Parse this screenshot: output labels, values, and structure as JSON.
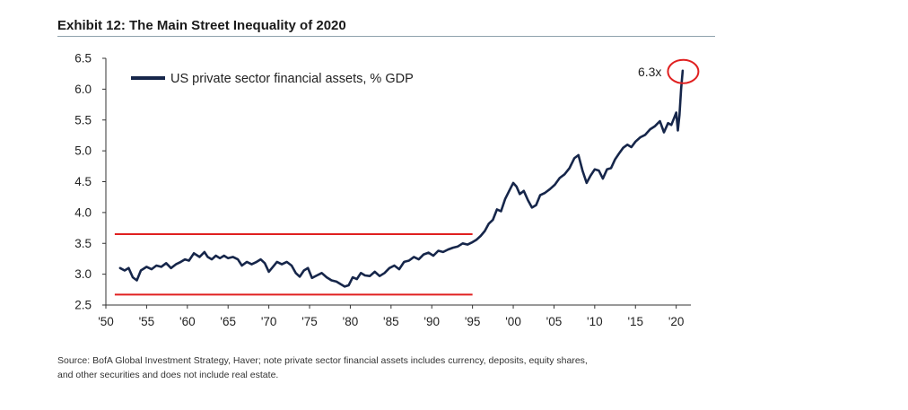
{
  "exhibit_title": "Exhibit 12: The Main Street Inequality of 2020",
  "source_note": {
    "line1": "Source: BofA Global Investment Strategy, Haver; note private sector financial assets includes currency,  deposits, equity shares,",
    "line2": "and other securities and does not include real estate."
  },
  "colors": {
    "line": "#16264a",
    "band": "#e02020",
    "circle": "#e02020",
    "axis": "#333333"
  },
  "chart_data": {
    "type": "line",
    "title": "Exhibit 12: The Main Street Inequality of 2020",
    "xlabel": "",
    "ylabel": "",
    "xlim": [
      1950,
      2021.8
    ],
    "ylim": [
      2.5,
      6.5
    ],
    "x_tick_values": [
      1950,
      1955,
      1960,
      1965,
      1970,
      1975,
      1980,
      1985,
      1990,
      1995,
      2000,
      2005,
      2010,
      2015,
      2020
    ],
    "x_tick_labels": [
      "'50",
      "'55",
      "'60",
      "'65",
      "'70",
      "'75",
      "'80",
      "'85",
      "'90",
      "'95",
      "'00",
      "'05",
      "'10",
      "'15",
      "'20"
    ],
    "y_tick_values": [
      2.5,
      3.0,
      3.5,
      4.0,
      4.5,
      5.0,
      5.5,
      6.0,
      6.5
    ],
    "y_tick_labels": [
      "2.5",
      "3.0",
      "3.5",
      "4.0",
      "4.5",
      "5.0",
      "5.5",
      "6.0",
      "6.5"
    ],
    "grid": false,
    "legend_position": "top-left",
    "series": [
      {
        "name": "US private sector financial assets, % GDP",
        "x": [
          1951.75,
          1952.3,
          1952.8,
          1953.3,
          1953.8,
          1954.3,
          1955.0,
          1955.6,
          1956.2,
          1956.8,
          1957.4,
          1958.0,
          1958.6,
          1959.2,
          1959.7,
          1960.2,
          1960.8,
          1961.5,
          1962.1,
          1962.5,
          1963.0,
          1963.5,
          1964.0,
          1964.5,
          1965.0,
          1965.6,
          1966.2,
          1966.7,
          1967.3,
          1967.9,
          1968.5,
          1969.0,
          1969.5,
          1970.0,
          1970.5,
          1971.0,
          1971.6,
          1972.2,
          1972.8,
          1973.3,
          1973.8,
          1974.3,
          1974.8,
          1975.3,
          1975.9,
          1976.5,
          1977.1,
          1977.7,
          1978.3,
          1978.8,
          1979.3,
          1979.8,
          1980.3,
          1980.8,
          1981.3,
          1981.8,
          1982.4,
          1983.0,
          1983.6,
          1984.2,
          1984.8,
          1985.4,
          1986.0,
          1986.6,
          1987.2,
          1987.8,
          1988.4,
          1989.0,
          1989.6,
          1990.2,
          1990.8,
          1991.4,
          1992.0,
          1992.6,
          1993.2,
          1993.8,
          1994.4,
          1995.0,
          1995.5,
          1996.0,
          1996.5,
          1997.0,
          1997.5,
          1998.0,
          1998.5,
          1999.0,
          1999.5,
          2000.0,
          2000.4,
          2000.8,
          2001.3,
          2001.8,
          2002.3,
          2002.8,
          2003.3,
          2003.9,
          2004.5,
          2005.1,
          2005.7,
          2006.3,
          2006.9,
          2007.5,
          2008.0,
          2008.5,
          2009.0,
          2009.5,
          2010.0,
          2010.5,
          2011.0,
          2011.5,
          2012.0,
          2012.5,
          2013.0,
          2013.5,
          2014.0,
          2014.5,
          2015.0,
          2015.6,
          2016.2,
          2016.8,
          2017.4,
          2018.0,
          2018.5,
          2019.0,
          2019.4,
          2019.8,
          2020.0,
          2020.2,
          2020.4,
          2020.6,
          2020.8
        ],
        "values": [
          3.1,
          3.06,
          3.1,
          2.95,
          2.9,
          3.06,
          3.12,
          3.08,
          3.14,
          3.12,
          3.18,
          3.1,
          3.16,
          3.2,
          3.24,
          3.22,
          3.34,
          3.28,
          3.36,
          3.28,
          3.24,
          3.3,
          3.26,
          3.3,
          3.26,
          3.28,
          3.24,
          3.14,
          3.2,
          3.16,
          3.2,
          3.24,
          3.18,
          3.04,
          3.12,
          3.2,
          3.16,
          3.2,
          3.14,
          3.02,
          2.96,
          3.06,
          3.1,
          2.94,
          2.98,
          3.02,
          2.95,
          2.9,
          2.88,
          2.84,
          2.8,
          2.82,
          2.95,
          2.92,
          3.02,
          2.98,
          2.97,
          3.04,
          2.97,
          3.02,
          3.1,
          3.14,
          3.08,
          3.2,
          3.22,
          3.28,
          3.24,
          3.32,
          3.35,
          3.3,
          3.38,
          3.36,
          3.4,
          3.43,
          3.45,
          3.5,
          3.48,
          3.52,
          3.56,
          3.62,
          3.7,
          3.82,
          3.88,
          4.05,
          4.02,
          4.22,
          4.35,
          4.48,
          4.42,
          4.3,
          4.35,
          4.2,
          4.08,
          4.12,
          4.28,
          4.32,
          4.38,
          4.45,
          4.56,
          4.62,
          4.72,
          4.88,
          4.93,
          4.68,
          4.48,
          4.6,
          4.7,
          4.68,
          4.55,
          4.7,
          4.72,
          4.86,
          4.96,
          5.05,
          5.1,
          5.06,
          5.15,
          5.22,
          5.26,
          5.35,
          5.4,
          5.48,
          5.3,
          5.45,
          5.42,
          5.55,
          5.62,
          5.33,
          5.58,
          6.0,
          6.3
        ]
      }
    ],
    "reference_lines": [
      {
        "x_start": 1951.75,
        "x_end": 1995.0,
        "y": 3.65
      },
      {
        "x_start": 1951.75,
        "x_end": 1995.0,
        "y": 2.67
      }
    ],
    "annotations": [
      {
        "text": "6.3x",
        "x": 2020.8,
        "y": 6.3
      }
    ]
  }
}
